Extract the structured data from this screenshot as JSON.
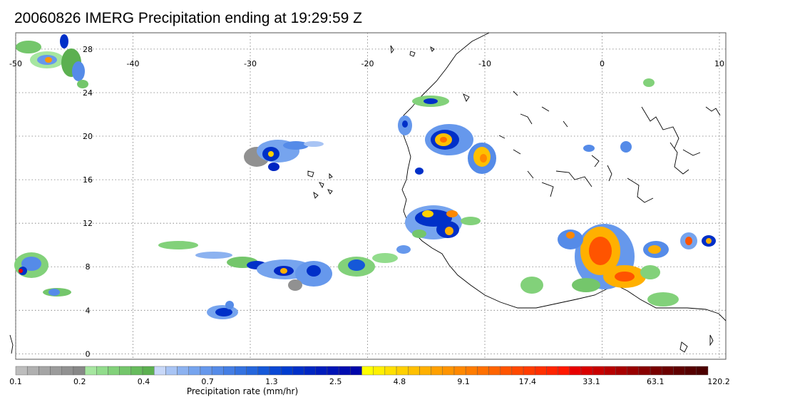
{
  "title": "20060826 IMERG Precipitation ending at 19:29:59 Z",
  "map": {
    "lon_ticks": [
      -50,
      -40,
      -30,
      -20,
      -10,
      0,
      10
    ],
    "lat_ticks": [
      28,
      24,
      20,
      16,
      12,
      8,
      4,
      0
    ],
    "lon_range": [
      -50,
      10
    ],
    "lat_range": [
      -0.5,
      29.5
    ],
    "grid": true,
    "gridline_style": "dotted"
  },
  "colorbar": {
    "label": "Precipitation rate (mm/hr)",
    "tick_labels": [
      "0.1",
      "0.2",
      "0.4",
      "0.7",
      "1.3",
      "2.5",
      "4.8",
      "9.1",
      "17.4",
      "33.1",
      "63.1",
      "120.2"
    ],
    "segment_colors": [
      "#bdbdbd",
      "#b0b0b0",
      "#a5a5a5",
      "#9b9b9b",
      "#919191",
      "#888888",
      "#a6e6a0",
      "#92dc8c",
      "#82d17a",
      "#74c66b",
      "#67bb5d",
      "#5cb050",
      "#c8d8f8",
      "#a8c4f4",
      "#8cb2f0",
      "#76a4ee",
      "#6698ec",
      "#558be8",
      "#447ee4",
      "#3472e0",
      "#2566dc",
      "#1558d8",
      "#0a48d4",
      "#003ccf",
      "#0030c8",
      "#0026c2",
      "#001cbc",
      "#0014b6",
      "#000cb0",
      "#0006aa",
      "#ffff00",
      "#fff000",
      "#ffe000",
      "#ffd000",
      "#ffc000",
      "#ffb000",
      "#ffa000",
      "#ff9400",
      "#ff8800",
      "#ff7c00",
      "#ff7000",
      "#ff6400",
      "#ff5400",
      "#ff4800",
      "#ff3c00",
      "#ff3000",
      "#ff2400",
      "#ff1800",
      "#e80000",
      "#d80000",
      "#c80000",
      "#b80000",
      "#a80000",
      "#980000",
      "#880000",
      "#780000",
      "#6c0000",
      "#600000",
      "#560000",
      "#4c0000"
    ]
  }
}
